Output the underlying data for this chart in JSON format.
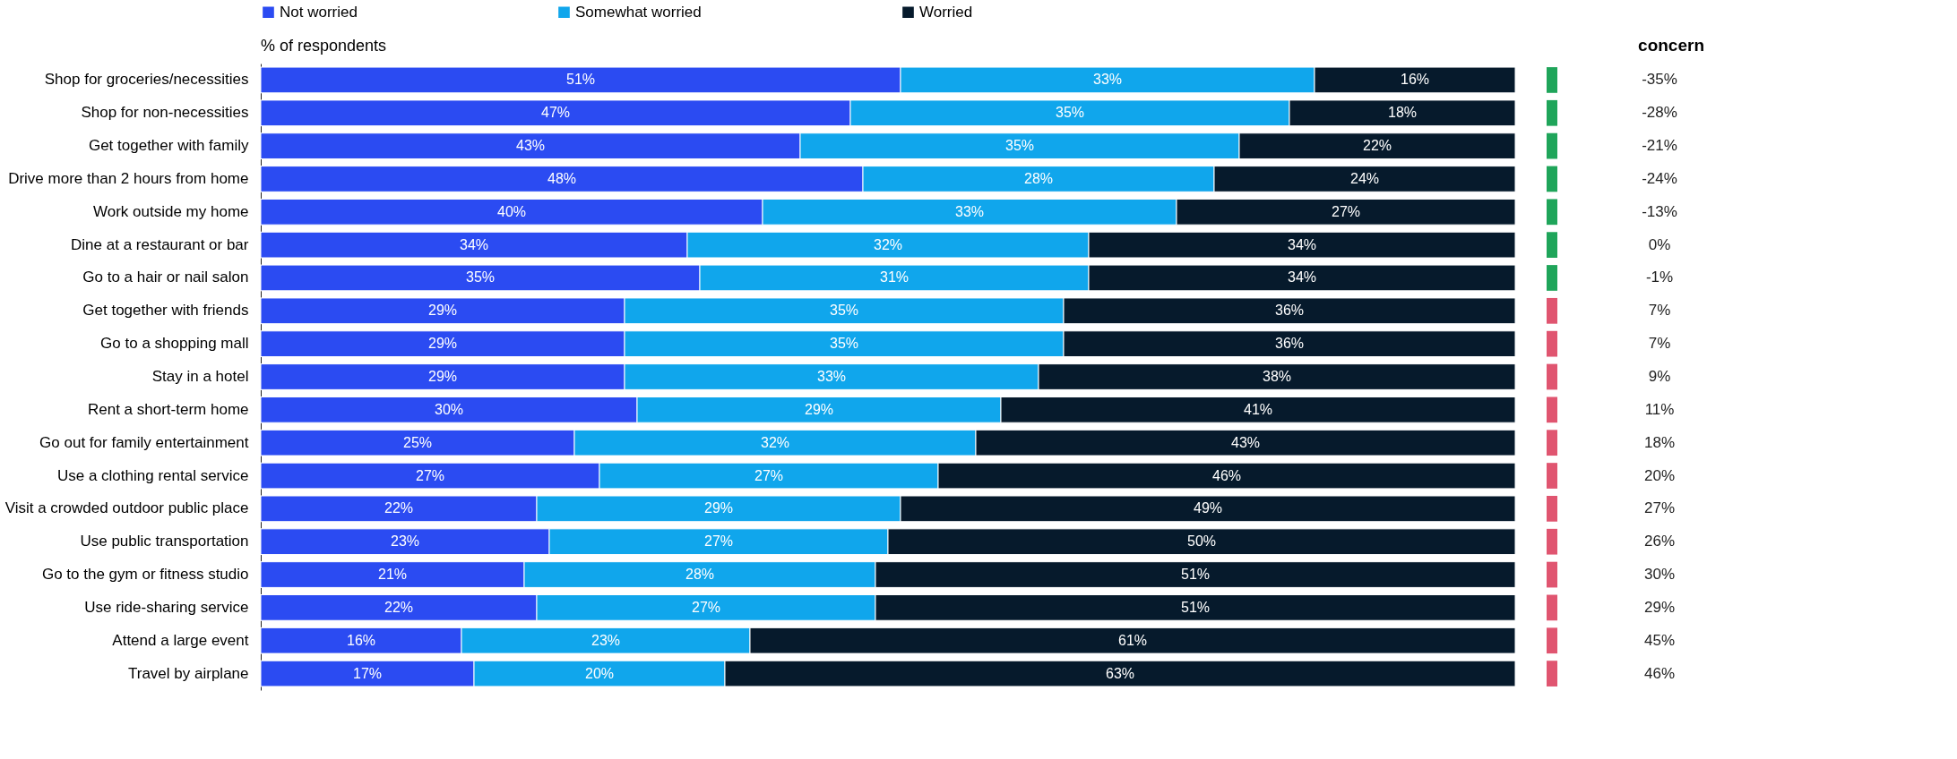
{
  "chart_data": [
    {
      "type": "bar",
      "orientation": "horizontal",
      "stacked": true,
      "legend": "top",
      "tick_labels": "y",
      "grid": false,
      "title": "% of respondents",
      "categories": [
        "Shop for groceries/necessities",
        "Shop for non-necessities",
        "Get together with family",
        "Drive more than 2 hours from home",
        "Work outside my home",
        "Dine at a restaurant or bar",
        "Go to a hair or nail salon",
        "Get together with friends",
        "Go to a shopping mall",
        "Stay in a hotel",
        "Rent a short-term home",
        "Go out for family entertainment",
        "Use a clothing rental service",
        "Visit a crowded outdoor public place",
        "Use public transportation",
        "Go to the gym or fitness studio",
        "Use ride-sharing service",
        "Attend a large event",
        "Travel by airplane"
      ],
      "series": [
        {
          "name": "Not worried",
          "color": "#2b4bf2",
          "values": [
            51,
            47,
            43,
            48,
            40,
            34,
            35,
            29,
            29,
            29,
            30,
            25,
            27,
            22,
            23,
            21,
            22,
            16,
            17
          ],
          "value_labels": [
            "51%",
            "47%",
            "43%",
            "48%",
            "40%",
            "34%",
            "35%",
            "29%",
            "29%",
            "29%",
            "30%",
            "25%",
            "27%",
            "22%",
            "23%",
            "21%",
            "22%",
            "16%",
            "17%"
          ]
        },
        {
          "name": "Somewhat worried",
          "color": "#10a6ec",
          "values": [
            33,
            35,
            35,
            28,
            33,
            32,
            31,
            35,
            35,
            33,
            29,
            32,
            27,
            29,
            27,
            28,
            27,
            23,
            20
          ],
          "value_labels": [
            "33%",
            "35%",
            "35%",
            "28%",
            "33%",
            "32%",
            "31%",
            "35%",
            "35%",
            "33%",
            "29%",
            "32%",
            "27%",
            "29%",
            "27%",
            "28%",
            "27%",
            "23%",
            "20%"
          ]
        },
        {
          "name": "Worried",
          "color": "#061a2c",
          "values": [
            16,
            18,
            22,
            24,
            27,
            34,
            34,
            36,
            36,
            38,
            41,
            43,
            46,
            49,
            50,
            51,
            51,
            61,
            63
          ],
          "value_labels": [
            "16%",
            "18%",
            "22%",
            "24%",
            "27%",
            "34%",
            "34%",
            "36%",
            "36%",
            "38%",
            "41%",
            "43%",
            "46%",
            "49%",
            "50%",
            "51%",
            "51%",
            "61%",
            "63%"
          ]
        }
      ]
    },
    {
      "type": "other",
      "title": "concern",
      "value_labels": [
        "-35%",
        "-28%",
        "-21%",
        "-24%",
        "-13%",
        "0%",
        "-1%",
        "7%",
        "7%",
        "9%",
        "11%",
        "18%",
        "20%",
        "27%",
        "26%",
        "30%",
        "29%",
        "45%",
        "46%"
      ],
      "colors": [
        "#1fa55a",
        "#1fa55a",
        "#1fa55a",
        "#1fa55a",
        "#1fa55a",
        "#1fa55a",
        "#1fa55a",
        "#e05570",
        "#e05570",
        "#e05570",
        "#e05570",
        "#e05570",
        "#e05570",
        "#e05570",
        "#e05570",
        "#e05570",
        "#e05570",
        "#e05570",
        "#e05570"
      ]
    }
  ]
}
